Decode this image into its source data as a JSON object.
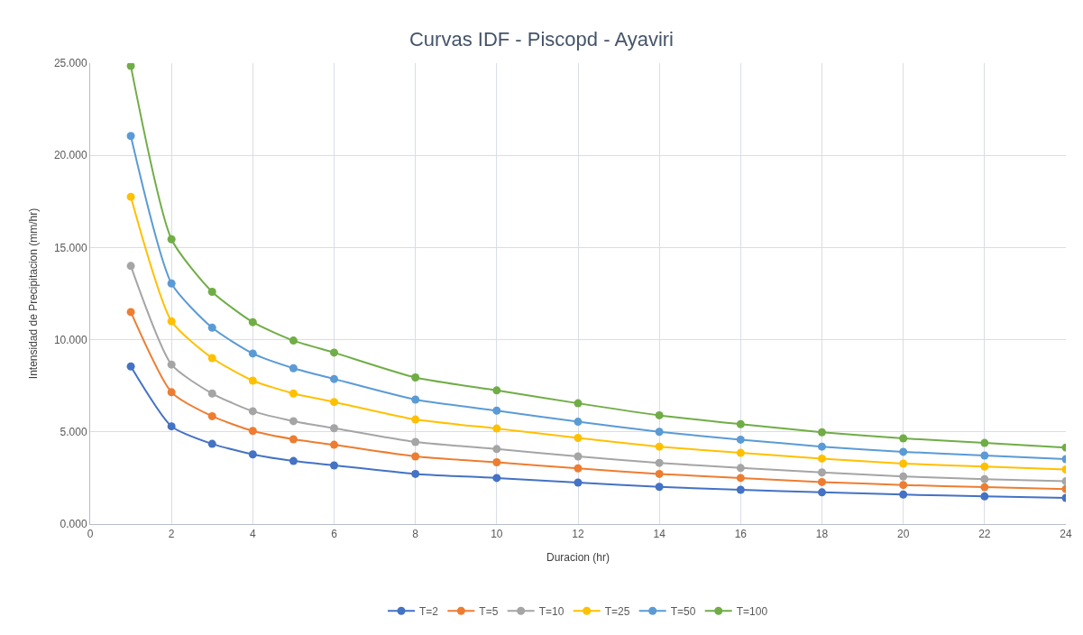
{
  "chart_data": {
    "type": "line",
    "title": "Curvas IDF - Piscopd - Ayaviri",
    "xlabel": "Duracion (hr)",
    "ylabel": "Intensidad de Precipitacion (mm/hr)",
    "x": [
      1,
      2,
      3,
      4,
      5,
      6,
      8,
      10,
      12,
      14,
      16,
      18,
      20,
      22,
      24
    ],
    "series": [
      {
        "name": "T=2",
        "color": "#4472c4",
        "values": [
          8.55,
          5.3,
          4.35,
          3.78,
          3.42,
          3.18,
          2.72,
          2.5,
          2.25,
          2.02,
          1.86,
          1.72,
          1.6,
          1.5,
          1.42
        ]
      },
      {
        "name": "T=5",
        "color": "#ed7d31",
        "values": [
          11.5,
          7.15,
          5.85,
          5.05,
          4.6,
          4.3,
          3.67,
          3.35,
          3.02,
          2.72,
          2.5,
          2.28,
          2.12,
          2.0,
          1.9
        ]
      },
      {
        "name": "T=10",
        "color": "#a5a5a5",
        "values": [
          14.0,
          8.65,
          7.08,
          6.12,
          5.58,
          5.2,
          4.45,
          4.07,
          3.67,
          3.32,
          3.04,
          2.8,
          2.58,
          2.44,
          2.32
        ]
      },
      {
        "name": "T=25",
        "color": "#ffc000",
        "values": [
          17.75,
          11.0,
          9.0,
          7.78,
          7.08,
          6.62,
          5.67,
          5.18,
          4.67,
          4.2,
          3.86,
          3.55,
          3.28,
          3.12,
          2.96
        ]
      },
      {
        "name": "T=50",
        "color": "#5b9bd5",
        "values": [
          21.05,
          13.05,
          10.65,
          9.25,
          8.45,
          7.87,
          6.75,
          6.15,
          5.55,
          5.0,
          4.58,
          4.2,
          3.92,
          3.72,
          3.52
        ]
      },
      {
        "name": "T=100",
        "color": "#70ad47",
        "values": [
          24.85,
          15.45,
          12.6,
          10.95,
          9.95,
          9.3,
          7.95,
          7.25,
          6.55,
          5.9,
          5.42,
          4.98,
          4.65,
          4.4,
          4.15
        ]
      }
    ],
    "xlim": [
      0,
      24
    ],
    "xticks": [
      0,
      2,
      4,
      6,
      8,
      10,
      12,
      14,
      16,
      18,
      20,
      22,
      24
    ],
    "ylim": [
      0,
      25
    ],
    "yticks": [
      {
        "value": 0,
        "label": "0.000"
      },
      {
        "value": 5,
        "label": "5.000"
      },
      {
        "value": 10,
        "label": "10.000"
      },
      {
        "value": 15,
        "label": "15.000"
      },
      {
        "value": 20,
        "label": "20.000"
      },
      {
        "value": 25,
        "label": "25.000"
      }
    ],
    "grid": true,
    "legend": "bottom",
    "marker": "circle",
    "line_style": "solid"
  }
}
